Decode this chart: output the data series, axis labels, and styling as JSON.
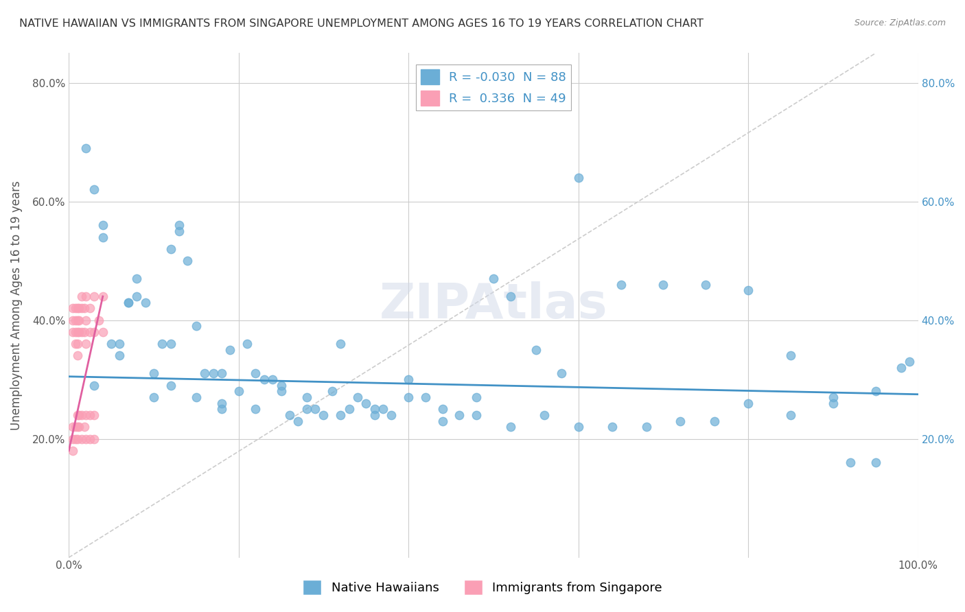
{
  "title": "NATIVE HAWAIIAN VS IMMIGRANTS FROM SINGAPORE UNEMPLOYMENT AMONG AGES 16 TO 19 YEARS CORRELATION CHART",
  "source": "Source: ZipAtlas.com",
  "ylabel": "Unemployment Among Ages 16 to 19 years",
  "xlim": [
    0,
    1.0
  ],
  "ylim": [
    0,
    0.85
  ],
  "legend_r_blue": "-0.030",
  "legend_n_blue": "88",
  "legend_r_pink": "0.336",
  "legend_n_pink": "49",
  "blue_color": "#6baed6",
  "pink_color": "#fa9fb5",
  "blue_line_color": "#4292c6",
  "pink_line_color": "#e05fa0",
  "blue_scatter_x": [
    0.02,
    0.03,
    0.04,
    0.04,
    0.05,
    0.06,
    0.06,
    0.07,
    0.07,
    0.08,
    0.08,
    0.09,
    0.1,
    0.1,
    0.11,
    0.12,
    0.12,
    0.13,
    0.13,
    0.14,
    0.15,
    0.16,
    0.17,
    0.18,
    0.18,
    0.19,
    0.2,
    0.21,
    0.22,
    0.23,
    0.24,
    0.25,
    0.26,
    0.27,
    0.28,
    0.29,
    0.3,
    0.31,
    0.32,
    0.33,
    0.34,
    0.35,
    0.36,
    0.37,
    0.38,
    0.4,
    0.42,
    0.44,
    0.46,
    0.48,
    0.5,
    0.52,
    0.55,
    0.58,
    0.6,
    0.65,
    0.7,
    0.75,
    0.8,
    0.85,
    0.9,
    0.92,
    0.95,
    0.98,
    0.12,
    0.15,
    0.18,
    0.22,
    0.25,
    0.28,
    0.32,
    0.36,
    0.4,
    0.44,
    0.48,
    0.52,
    0.56,
    0.6,
    0.64,
    0.68,
    0.72,
    0.76,
    0.8,
    0.85,
    0.9,
    0.95,
    0.99,
    0.03
  ],
  "blue_scatter_y": [
    0.69,
    0.62,
    0.54,
    0.56,
    0.36,
    0.36,
    0.34,
    0.43,
    0.43,
    0.47,
    0.44,
    0.43,
    0.27,
    0.31,
    0.36,
    0.36,
    0.52,
    0.55,
    0.56,
    0.5,
    0.39,
    0.31,
    0.31,
    0.31,
    0.25,
    0.35,
    0.28,
    0.36,
    0.31,
    0.3,
    0.3,
    0.29,
    0.24,
    0.23,
    0.27,
    0.25,
    0.24,
    0.28,
    0.36,
    0.25,
    0.27,
    0.26,
    0.24,
    0.25,
    0.24,
    0.3,
    0.27,
    0.25,
    0.24,
    0.27,
    0.47,
    0.44,
    0.35,
    0.31,
    0.64,
    0.46,
    0.46,
    0.46,
    0.45,
    0.34,
    0.26,
    0.16,
    0.16,
    0.32,
    0.29,
    0.27,
    0.26,
    0.25,
    0.28,
    0.25,
    0.24,
    0.25,
    0.27,
    0.23,
    0.24,
    0.22,
    0.24,
    0.22,
    0.22,
    0.22,
    0.23,
    0.23,
    0.26,
    0.24,
    0.27,
    0.28,
    0.33,
    0.29
  ],
  "pink_scatter_x": [
    0.005,
    0.005,
    0.005,
    0.008,
    0.008,
    0.008,
    0.008,
    0.01,
    0.01,
    0.01,
    0.01,
    0.01,
    0.012,
    0.012,
    0.012,
    0.015,
    0.015,
    0.015,
    0.018,
    0.018,
    0.02,
    0.02,
    0.02,
    0.025,
    0.025,
    0.03,
    0.03,
    0.035,
    0.04,
    0.04,
    0.005,
    0.005,
    0.005,
    0.008,
    0.008,
    0.01,
    0.01,
    0.01,
    0.012,
    0.012,
    0.015,
    0.015,
    0.018,
    0.02,
    0.02,
    0.025,
    0.025,
    0.03,
    0.03
  ],
  "pink_scatter_y": [
    0.42,
    0.4,
    0.38,
    0.42,
    0.4,
    0.38,
    0.36,
    0.42,
    0.4,
    0.38,
    0.36,
    0.34,
    0.42,
    0.4,
    0.38,
    0.44,
    0.42,
    0.38,
    0.42,
    0.38,
    0.44,
    0.4,
    0.36,
    0.42,
    0.38,
    0.44,
    0.38,
    0.4,
    0.44,
    0.38,
    0.22,
    0.2,
    0.18,
    0.22,
    0.2,
    0.24,
    0.22,
    0.2,
    0.24,
    0.22,
    0.24,
    0.2,
    0.22,
    0.24,
    0.2,
    0.24,
    0.2,
    0.24,
    0.2
  ],
  "blue_trend_x": [
    0.0,
    1.0
  ],
  "blue_trend_y": [
    0.305,
    0.275
  ],
  "pink_trend_x": [
    0.0,
    0.04
  ],
  "pink_trend_y": [
    0.18,
    0.44
  ],
  "background_color": "#ffffff",
  "grid_color": "#cccccc",
  "legend_font_size": 13,
  "title_font_size": 11.5,
  "axis_label_font_size": 12,
  "tick_font_size": 11
}
